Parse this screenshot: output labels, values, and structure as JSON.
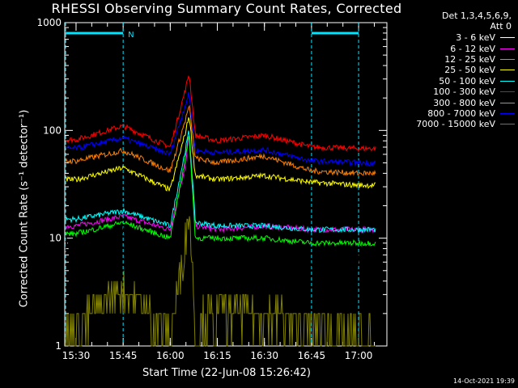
{
  "chart_data": {
    "type": "line",
    "title": "RHESSI Observing Summary Count Rates, Corrected",
    "xlabel": "Start Time (22-Jun-08 15:26:42)",
    "ylabel": "Corrected Count Rate (s⁻¹ detector⁻¹)",
    "yscale": "log",
    "ylim": [
      1,
      1000
    ],
    "xlim_minutes": [
      15.44,
      17.15
    ],
    "x_ticks": [
      "15:30",
      "15:45",
      "16:00",
      "16:15",
      "16:30",
      "16:45",
      "17:00"
    ],
    "y_ticks": [
      "1",
      "10",
      "100",
      "1000"
    ],
    "detector_info": [
      "Det 1,3,4,5,6,9,",
      "Att 0"
    ],
    "flag_label": "N",
    "night_bars": [
      [
        "15:26:42",
        "15:45"
      ],
      [
        "16:45",
        "17:00"
      ]
    ],
    "x": [
      "15:30",
      "15:45",
      "16:00",
      "16:05",
      "16:06",
      "16:08",
      "16:15",
      "16:30",
      "16:45",
      "17:00"
    ],
    "series": [
      {
        "name": "3 - 6 keV",
        "color": "#000000",
        "values": [
          9,
          11,
          8,
          40,
          90,
          8,
          7,
          7,
          6,
          6
        ]
      },
      {
        "name": "6 - 12 keV",
        "color": "#ff00ff",
        "values": [
          13,
          16,
          12,
          50,
          95,
          13,
          12,
          13,
          12,
          12
        ]
      },
      {
        "name": "12 - 25 keV",
        "color": "#ff0000",
        "values": [
          82,
          110,
          70,
          250,
          340,
          90,
          80,
          90,
          70,
          68
        ]
      },
      {
        "name": "25 - 50 keV",
        "color": "#00ffff",
        "values": [
          15,
          18,
          13,
          70,
          100,
          14,
          13,
          13,
          12,
          12
        ]
      },
      {
        "name": "50 - 100 keV",
        "color": "#ffff00",
        "values": [
          35,
          45,
          28,
          100,
          140,
          38,
          35,
          38,
          33,
          31
        ]
      },
      {
        "name": "100 - 300 keV",
        "color": "#ff7f00",
        "values": [
          52,
          65,
          42,
          130,
          170,
          55,
          50,
          58,
          42,
          40
        ]
      },
      {
        "name": "300 - 800 keV",
        "color": "#0000ff",
        "values": [
          68,
          85,
          60,
          180,
          220,
          65,
          62,
          66,
          52,
          50
        ]
      },
      {
        "name": "800 - 7000 keV",
        "color": "#00ff00",
        "values": [
          11,
          14,
          10,
          60,
          92,
          10,
          10,
          10,
          9,
          9
        ]
      },
      {
        "name": "7000 - 15000 keV",
        "color": "#808000",
        "values": [
          1.5,
          3.5,
          1.2,
          10,
          20,
          1.5,
          2,
          2,
          1.5,
          1.2
        ]
      }
    ]
  },
  "legend_items": [
    {
      "label": "3 - 6 keV",
      "color": "#ffffff"
    },
    {
      "label": "6 - 12 keV",
      "color": "#ff00ff"
    },
    {
      "label": "12 - 25 keV",
      "color": "#00ff00"
    },
    {
      "label": "25 - 50 keV",
      "color": "#ffff00"
    },
    {
      "label": "50 - 100 keV",
      "color": "#00ffff"
    },
    {
      "label": "100 - 300 keV",
      "color": "#ff0000"
    },
    {
      "label": "300 - 800 keV",
      "color": "#ff7f00"
    },
    {
      "label": "800 - 7000 keV",
      "color": "#0000ff"
    },
    {
      "label": "7000 - 15000 keV",
      "color": "#808000"
    }
  ],
  "timestamp": "14-Oct-2021 19:39"
}
